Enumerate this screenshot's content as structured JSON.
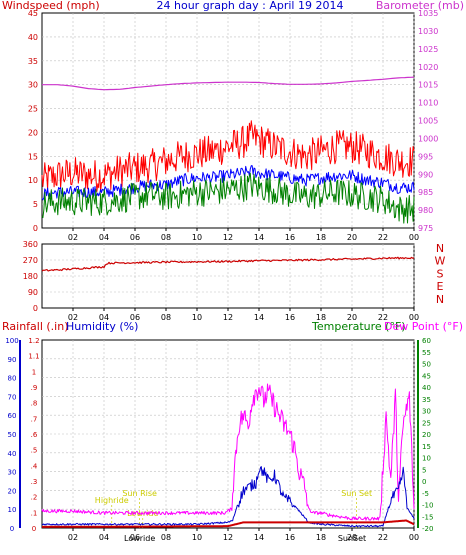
{
  "colors": {
    "wind": "#ff0000",
    "avgwind": "#0000ff",
    "gust_low": "#008000",
    "barometer": "#cc33cc",
    "direction": "#cc0000",
    "rain": "#cc0000",
    "humidity": "#0000cc",
    "temperature": "#006600",
    "dewpoint": "#ff00ff",
    "event": "#cccc00",
    "grid": "#c0c0c0",
    "axis": "#000000"
  },
  "chart_data": [
    {
      "type": "line",
      "panel": "wind_barometer",
      "title": "24 hour graph day : April 19 2014",
      "ylabel_left": "Windspeed (mph)",
      "ylabel_right": "Barometer (mb)",
      "ylim_left": [
        0,
        45
      ],
      "ylim_right": [
        975,
        1035
      ],
      "yticks_left": [
        "0",
        "5",
        "10",
        "15",
        "20",
        "25",
        "30",
        "35",
        "40",
        "45"
      ],
      "yticks_right": [
        "975",
        "980",
        "985",
        "990",
        "995",
        "1000",
        "1005",
        "1010",
        "1015",
        "1020",
        "1025",
        "1030",
        "1035"
      ],
      "xticks": [
        "02",
        "04",
        "06",
        "08",
        "10",
        "12",
        "14",
        "16",
        "18",
        "20",
        "22",
        "00"
      ],
      "xlim_hours": [
        0,
        24
      ],
      "grid": true,
      "series": [
        {
          "name": "",
          "color_key": "wind",
          "axis": "left",
          "kind": "noisy",
          "x": [
            0,
            1,
            2,
            3,
            4,
            5,
            6,
            7,
            8,
            9,
            10,
            11,
            12,
            13,
            13.5,
            14,
            15,
            16,
            17,
            18,
            19,
            20,
            21,
            22,
            23,
            24
          ],
          "y": [
            10,
            11,
            11.5,
            11,
            11,
            12,
            12.5,
            13,
            14,
            15,
            15.5,
            16,
            17,
            18,
            19,
            18.5,
            17,
            16,
            15,
            16,
            17,
            17,
            16,
            15,
            14,
            14
          ],
          "amp": 3.5
        },
        {
          "name": "",
          "color_key": "avgwind",
          "axis": "left",
          "kind": "noisy",
          "x": [
            0,
            1,
            2,
            3,
            4,
            5,
            6,
            7,
            8,
            9,
            10,
            11,
            12,
            13,
            13.5,
            14,
            15,
            16,
            17,
            18,
            19,
            20,
            21,
            22,
            23,
            24
          ],
          "y": [
            7,
            7.5,
            7.5,
            7.5,
            7.5,
            8,
            8.5,
            9,
            9,
            10,
            10.5,
            10.5,
            11,
            11.5,
            12,
            11.5,
            11,
            10.5,
            10,
            10.5,
            11,
            11,
            10,
            9.5,
            8.5,
            8.5
          ],
          "amp": 1.3
        },
        {
          "name": "",
          "color_key": "gust_low",
          "axis": "left",
          "kind": "noisy",
          "x": [
            0,
            1,
            2,
            3,
            4,
            5,
            6,
            7,
            8,
            9,
            10,
            11,
            12,
            13,
            13.5,
            14,
            15,
            16,
            17,
            18,
            19,
            20,
            21,
            22,
            23,
            24
          ],
          "y": [
            5,
            5.5,
            5.5,
            5.5,
            5.5,
            6,
            6.5,
            7,
            6.5,
            7,
            7.5,
            7.5,
            8,
            8.5,
            9,
            8.5,
            8,
            7,
            6.5,
            7,
            7.5,
            7,
            6.5,
            6,
            4,
            4
          ],
          "amp": 3
        },
        {
          "name": "",
          "color_key": "barometer",
          "axis": "right",
          "kind": "smooth",
          "x": [
            0,
            1,
            2,
            3,
            4,
            5,
            6,
            7,
            8,
            9,
            10,
            11,
            12,
            13,
            14,
            15,
            16,
            17,
            18,
            19,
            20,
            21,
            22,
            23,
            24
          ],
          "y": [
            1015,
            1015,
            1014.6,
            1013.9,
            1013.6,
            1013.7,
            1014.2,
            1014.6,
            1015,
            1015.3,
            1015.5,
            1015.6,
            1015.7,
            1015.7,
            1015.6,
            1015.3,
            1015.1,
            1015.1,
            1015.2,
            1015.5,
            1015.9,
            1016.2,
            1016.5,
            1016.9,
            1017.1
          ],
          "amp": 0
        }
      ]
    },
    {
      "type": "scatter",
      "panel": "wind_direction",
      "ylim": [
        0,
        360
      ],
      "yticks": [
        "0",
        "90",
        "180",
        "270",
        "360"
      ],
      "compass": [
        "N",
        "W",
        "S",
        "E",
        "N"
      ],
      "xticks": [
        "02",
        "04",
        "06",
        "08",
        "10",
        "12",
        "14",
        "16",
        "18",
        "20",
        "22",
        "00"
      ],
      "grid": true,
      "series": [
        {
          "name": "",
          "color_key": "direction",
          "kind": "noisy",
          "x": [
            0,
            1,
            2,
            3,
            4,
            4.2,
            5,
            6,
            8,
            10,
            12,
            14,
            16,
            18,
            20,
            22,
            24
          ],
          "y": [
            210,
            214,
            220,
            226,
            232,
            252,
            254,
            255,
            258,
            260,
            262,
            266,
            268,
            272,
            275,
            280,
            282
          ],
          "amp": 5
        }
      ]
    },
    {
      "type": "line",
      "panel": "rain_humidity_temp",
      "ylabel_rain": "Rainfall (.in)",
      "ylabel_humidity": "Humidity (%)",
      "ylabel_temperature": "Temperature (°F)",
      "ylabel_dewpoint": "Dew Point (°F)",
      "ylim_humidity": [
        0,
        100
      ],
      "ylim_rain": [
        0,
        1.2
      ],
      "ylim_temp": [
        -20,
        60
      ],
      "yticks_humidity": [
        "0",
        "10",
        "20",
        "30",
        "40",
        "50",
        "60",
        "70",
        "80",
        "90",
        "100"
      ],
      "yticks_rain": [
        "0",
        ".1",
        ".2",
        ".3",
        ".4",
        ".5",
        ".6",
        ".7",
        ".8",
        ".9",
        "1",
        "1.1",
        "1.2"
      ],
      "yticks_temp": [
        "-20",
        "-15",
        "-10",
        "-5",
        "0",
        "5",
        "10",
        "15",
        "20",
        "25",
        "30",
        "35",
        "40",
        "45",
        "50",
        "55",
        "60"
      ],
      "xticks": [
        "02",
        "04",
        "06",
        "08",
        "10",
        "12",
        "14",
        "16",
        "18",
        "20",
        "22",
        "00"
      ],
      "grid": true,
      "events": [
        {
          "label": "Highride",
          "hour": 4.5,
          "row": 2
        },
        {
          "label": "Sun Rise",
          "hour": 6.3,
          "row": 3
        },
        {
          "label": "Lowride",
          "hour": 6.5,
          "row": 1
        },
        {
          "label": "Lowride",
          "hour": 6.3,
          "row": 0
        },
        {
          "label": "Sun Set",
          "hour": 20.3,
          "row": 3
        },
        {
          "label": "SunSet",
          "hour": 20,
          "row": 0
        }
      ],
      "series": [
        {
          "name": "",
          "color_key": "dewpoint",
          "axis": "humidity",
          "kind": "spiky",
          "x": [
            0,
            2,
            4,
            6,
            8,
            10,
            11.8,
            12.2,
            12.5,
            12.7,
            13,
            13.3,
            13.6,
            14,
            14.3,
            14.6,
            15,
            15.3,
            15.6,
            16,
            16.3,
            16.6,
            17,
            17.2,
            17.5,
            18,
            18.5,
            20,
            21.8,
            22.2,
            22.5,
            22.8,
            23,
            23.3,
            23.7,
            24
          ],
          "y": [
            9,
            9,
            8,
            8,
            8,
            8,
            8,
            10,
            40,
            55,
            60,
            55,
            70,
            75,
            68,
            72,
            65,
            60,
            55,
            50,
            42,
            30,
            20,
            10,
            8,
            8,
            7,
            5,
            5,
            60,
            25,
            70,
            15,
            55,
            70,
            10
          ],
          "amp": 6
        },
        {
          "name": "",
          "color_key": "humidity",
          "axis": "humidity",
          "kind": "spiky",
          "x": [
            0,
            2,
            4,
            6,
            8,
            10,
            12,
            12.3,
            12.6,
            13,
            13.4,
            13.8,
            14,
            14.3,
            14.6,
            15,
            15.3,
            15.6,
            16,
            16.5,
            17,
            17.2,
            18,
            20,
            22,
            22.5,
            23,
            23.3,
            23.6,
            24
          ],
          "y": [
            2,
            2,
            2,
            2,
            2,
            2,
            3,
            4,
            12,
            20,
            22,
            24,
            32,
            30,
            25,
            28,
            22,
            16,
            14,
            10,
            5,
            3,
            2,
            1,
            1,
            15,
            20,
            30,
            10,
            5
          ],
          "amp": 3
        },
        {
          "name": "",
          "color_key": "rain",
          "axis": "humidity",
          "kind": "smooth",
          "x": [
            0,
            4,
            8,
            12,
            12.5,
            13,
            18,
            22,
            23.5,
            24
          ],
          "y": [
            0.6,
            0.7,
            0.8,
            1,
            2,
            3,
            3,
            3,
            4,
            2
          ],
          "amp": 0
        }
      ]
    }
  ]
}
